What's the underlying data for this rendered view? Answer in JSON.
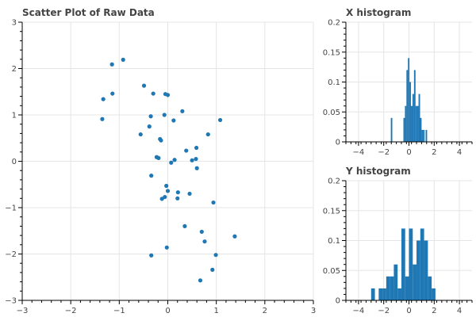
{
  "chart_data": [
    {
      "type": "scatter",
      "title": "Scatter Plot of Raw Data",
      "xlim": [
        -3,
        3
      ],
      "ylim": [
        -3,
        3
      ],
      "x_ticks": [
        -3,
        -2,
        -1,
        0,
        1,
        2,
        3
      ],
      "y_ticks": [
        -3,
        -2,
        -1,
        0,
        1,
        2,
        3
      ],
      "grid": true,
      "color": "#1f77b4",
      "points": [
        [
          -0.92,
          2.19
        ],
        [
          -1.15,
          2.09
        ],
        [
          -1.14,
          1.46
        ],
        [
          -1.33,
          1.34
        ],
        [
          -1.35,
          0.91
        ],
        [
          -0.49,
          1.63
        ],
        [
          -0.3,
          1.46
        ],
        [
          -0.05,
          1.45
        ],
        [
          0.0,
          1.43
        ],
        [
          0.3,
          1.08
        ],
        [
          -0.35,
          0.97
        ],
        [
          -0.07,
          1.0
        ],
        [
          0.12,
          0.88
        ],
        [
          1.08,
          0.89
        ],
        [
          -0.38,
          0.75
        ],
        [
          -0.56,
          0.58
        ],
        [
          -0.16,
          0.48
        ],
        [
          -0.14,
          0.45
        ],
        [
          0.59,
          0.29
        ],
        [
          0.38,
          0.23
        ],
        [
          0.83,
          0.58
        ],
        [
          -0.23,
          0.09
        ],
        [
          -0.19,
          0.07
        ],
        [
          0.14,
          0.03
        ],
        [
          0.07,
          -0.03
        ],
        [
          0.5,
          0.02
        ],
        [
          0.58,
          0.05
        ],
        [
          0.6,
          -0.15
        ],
        [
          -0.34,
          -0.31
        ],
        [
          -0.03,
          -0.53
        ],
        [
          0.0,
          -0.64
        ],
        [
          -0.06,
          -0.77
        ],
        [
          -0.12,
          -0.81
        ],
        [
          0.21,
          -0.67
        ],
        [
          0.45,
          -0.7
        ],
        [
          0.2,
          -0.8
        ],
        [
          0.94,
          -0.89
        ],
        [
          0.35,
          -1.4
        ],
        [
          0.7,
          -1.52
        ],
        [
          0.76,
          -1.73
        ],
        [
          1.38,
          -1.62
        ],
        [
          -0.34,
          -2.03
        ],
        [
          -0.02,
          -1.86
        ],
        [
          0.99,
          -2.02
        ],
        [
          0.92,
          -2.34
        ],
        [
          0.67,
          -2.57
        ]
      ]
    },
    {
      "type": "bar",
      "title": "X histogram",
      "xlim": [
        -5,
        5
      ],
      "ylim": [
        0,
        0.2
      ],
      "x_ticks": [
        -4,
        -2,
        0,
        2,
        4
      ],
      "y_ticks": [
        0,
        0.05,
        0.1,
        0.15,
        0.2
      ],
      "grid": true,
      "color": "#1f77b4",
      "bin_width": 0.12,
      "bins": [
        {
          "x": -1.38,
          "value": 0.04
        },
        {
          "x": -0.38,
          "value": 0.04
        },
        {
          "x": -0.26,
          "value": 0.06
        },
        {
          "x": -0.14,
          "value": 0.12
        },
        {
          "x": -0.02,
          "value": 0.14
        },
        {
          "x": 0.1,
          "value": 0.1
        },
        {
          "x": 0.22,
          "value": 0.06
        },
        {
          "x": 0.34,
          "value": 0.08
        },
        {
          "x": 0.46,
          "value": 0.12
        },
        {
          "x": 0.58,
          "value": 0.06
        },
        {
          "x": 0.7,
          "value": 0.06
        },
        {
          "x": 0.82,
          "value": 0.08
        },
        {
          "x": 0.94,
          "value": 0.04
        },
        {
          "x": 1.06,
          "value": 0.02
        },
        {
          "x": 1.18,
          "value": 0.02
        },
        {
          "x": 1.38,
          "value": 0.02
        }
      ]
    },
    {
      "type": "bar",
      "title": "Y histogram",
      "xlim": [
        -5,
        5
      ],
      "ylim": [
        0,
        0.2
      ],
      "x_ticks": [
        -4,
        -2,
        0,
        2,
        4
      ],
      "y_ticks": [
        0,
        0.05,
        0.1,
        0.15,
        0.2
      ],
      "grid": true,
      "color": "#1f77b4",
      "bin_width": 0.3,
      "bins": [
        {
          "x": -2.85,
          "value": 0.02
        },
        {
          "x": -2.25,
          "value": 0.02
        },
        {
          "x": -1.95,
          "value": 0.02
        },
        {
          "x": -1.65,
          "value": 0.04
        },
        {
          "x": -1.35,
          "value": 0.04
        },
        {
          "x": -1.05,
          "value": 0.06
        },
        {
          "x": -0.75,
          "value": 0.02
        },
        {
          "x": -0.45,
          "value": 0.12
        },
        {
          "x": -0.15,
          "value": 0.04
        },
        {
          "x": 0.15,
          "value": 0.12
        },
        {
          "x": 0.45,
          "value": 0.06
        },
        {
          "x": 0.75,
          "value": 0.1
        },
        {
          "x": 1.05,
          "value": 0.12
        },
        {
          "x": 1.35,
          "value": 0.1
        },
        {
          "x": 1.65,
          "value": 0.04
        },
        {
          "x": 1.95,
          "value": 0.02
        }
      ]
    }
  ]
}
